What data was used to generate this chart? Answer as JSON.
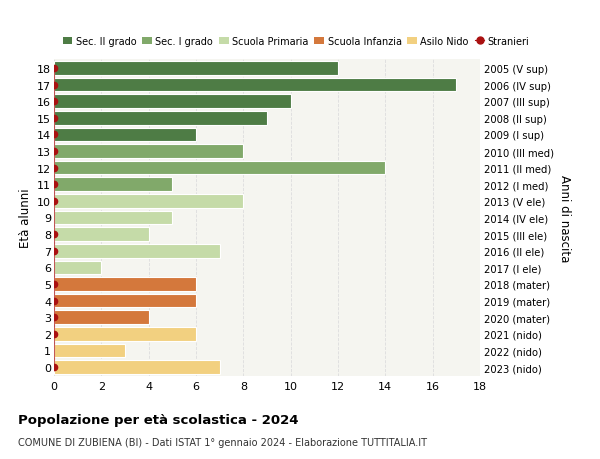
{
  "ages": [
    18,
    17,
    16,
    15,
    14,
    13,
    12,
    11,
    10,
    9,
    8,
    7,
    6,
    5,
    4,
    3,
    2,
    1,
    0
  ],
  "right_labels": [
    "2005 (V sup)",
    "2006 (IV sup)",
    "2007 (III sup)",
    "2008 (II sup)",
    "2009 (I sup)",
    "2010 (III med)",
    "2011 (II med)",
    "2012 (I med)",
    "2013 (V ele)",
    "2014 (IV ele)",
    "2015 (III ele)",
    "2016 (II ele)",
    "2017 (I ele)",
    "2018 (mater)",
    "2019 (mater)",
    "2020 (mater)",
    "2021 (nido)",
    "2022 (nido)",
    "2023 (nido)"
  ],
  "bar_values": [
    12,
    17,
    10,
    9,
    6,
    8,
    14,
    5,
    8,
    5,
    4,
    7,
    2,
    6,
    6,
    4,
    6,
    3,
    7
  ],
  "bar_colors": [
    "#4e7c45",
    "#4e7c45",
    "#4e7c45",
    "#4e7c45",
    "#4e7c45",
    "#81a96a",
    "#81a96a",
    "#81a96a",
    "#c5dba8",
    "#c5dba8",
    "#c5dba8",
    "#c5dba8",
    "#c5dba8",
    "#d4783c",
    "#d4783c",
    "#d4783c",
    "#f2d080",
    "#f2d080",
    "#f2d080"
  ],
  "stranieri_present": [
    1,
    1,
    1,
    1,
    1,
    1,
    1,
    1,
    1,
    0,
    1,
    1,
    0,
    1,
    1,
    1,
    1,
    0,
    1
  ],
  "stranieri_color": "#aa1111",
  "legend_items": [
    {
      "label": "Sec. II grado",
      "color": "#4e7c45"
    },
    {
      "label": "Sec. I grado",
      "color": "#81a96a"
    },
    {
      "label": "Scuola Primaria",
      "color": "#c5dba8"
    },
    {
      "label": "Scuola Infanzia",
      "color": "#d4783c"
    },
    {
      "label": "Asilo Nido",
      "color": "#f2d080"
    },
    {
      "label": "Stranieri",
      "color": "#aa1111"
    }
  ],
  "ylabel": "Età alunni",
  "right_ylabel": "Anni di nascita",
  "title": "Popolazione per età scolastica - 2024",
  "subtitle": "COMUNE DI ZUBIENA (BI) - Dati ISTAT 1° gennaio 2024 - Elaborazione TUTTITALIA.IT",
  "xlim": [
    0,
    18
  ],
  "ylim": [
    -0.55,
    18.55
  ],
  "xticks": [
    0,
    2,
    4,
    6,
    8,
    10,
    12,
    14,
    16,
    18
  ],
  "background_color": "#ffffff",
  "plot_bg_color": "#f5f5f0",
  "grid_color": "#dddddd"
}
